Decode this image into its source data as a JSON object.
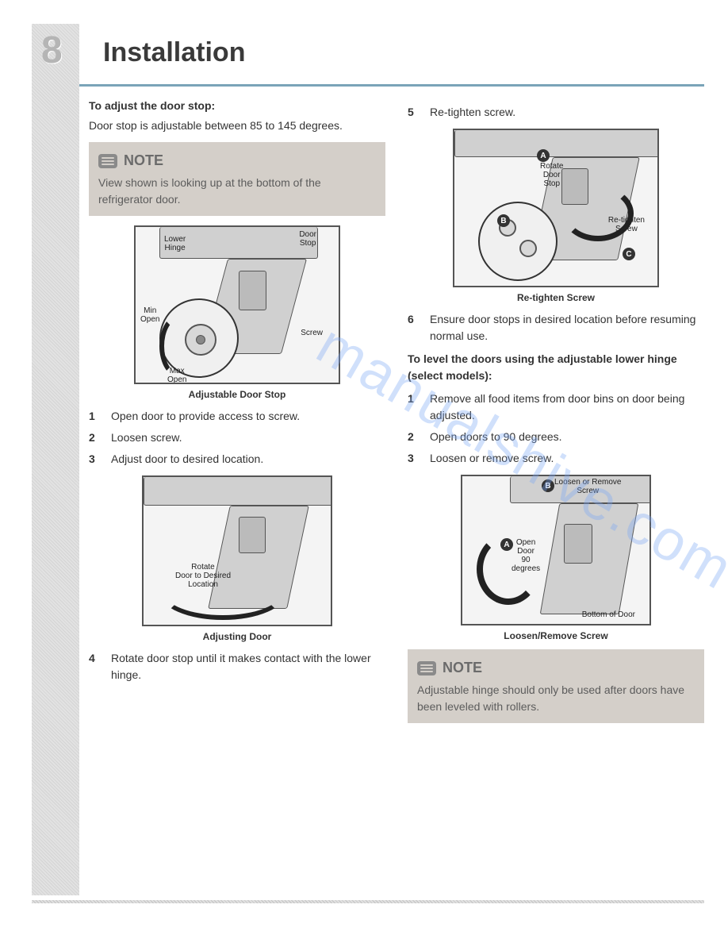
{
  "page_number": "8",
  "title": "Installation",
  "colors": {
    "title_rule": "#7aa4b8",
    "page_num": "#b5b5b5",
    "note_bg": "#d4cfc9",
    "note_text": "#5c5c5c",
    "watermark": "#7aa7f5"
  },
  "watermark_text": "manualshive.com",
  "left": {
    "heading1": "To adjust the door stop:",
    "intro": "Door stop is adjustable between 85 to 145 degrees.",
    "note_label": "NOTE",
    "note_body": "View shown is looking up at the bottom of the refrigerator door.",
    "fig1_caption": "Adjustable Door Stop",
    "fig1_lbl_lowerhinge": "Lower\nHinge",
    "fig1_lbl_doorstop": "Door\nStop",
    "fig1_lbl_minopen": "Min\nOpen",
    "fig1_lbl_maxopen": "Max\nOpen",
    "fig1_lbl_screw": "Screw",
    "steps_a": [
      "Open door to provide access to screw.",
      "Loosen screw.",
      "Adjust door to desired location."
    ],
    "fig2_caption": "Adjusting Door",
    "fig2_lbl_rotate": "Rotate\nDoor to Desired\nLocation",
    "step_4": "Rotate door stop until it makes contact with the lower hinge."
  },
  "right": {
    "step_5": "Re-tighten screw.",
    "fig3_caption": "Re-tighten Screw",
    "fig3_lbl_rotate": "Rotate\nDoor\nStop",
    "fig3_lbl_retighten": "Re-tighten\nScrew",
    "fig3_badge_a": "A",
    "fig3_badge_b": "B",
    "fig3_badge_c": "C",
    "step_6": "Ensure door stops in desired location before resuming normal use.",
    "heading2": "To level the doors using the adjustable lower hinge (select models):",
    "steps_b": [
      "Remove all food items from door bins on door being adjusted.",
      "Open doors to 90 degrees.",
      "Loosen or remove screw."
    ],
    "fig4_caption": "Loosen/Remove Screw",
    "fig4_lbl_loosen": "Loosen or Remove\nScrew",
    "fig4_lbl_open": "Open\nDoor\n90\ndegrees",
    "fig4_lbl_bottom": "Bottom of Door",
    "fig4_badge_a": "A",
    "fig4_badge_b": "B",
    "note_label": "NOTE",
    "note_body": "Adjustable hinge should only be used after doors have been leveled with rollers."
  }
}
